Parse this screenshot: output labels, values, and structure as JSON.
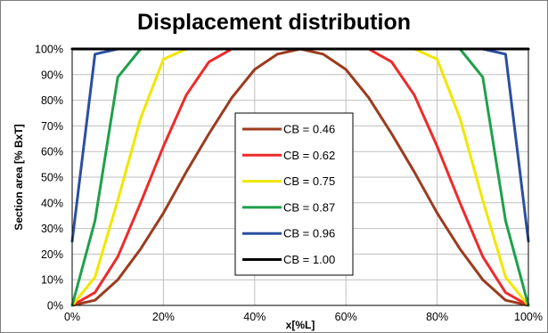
{
  "chart_data": {
    "type": "line",
    "title": "Displacement distribution",
    "xlabel": "x[%L]",
    "ylabel": "Section area [% BxT]",
    "xlim": [
      0,
      100
    ],
    "ylim": [
      0,
      100
    ],
    "x_ticks": [
      "0%",
      "20%",
      "40%",
      "60%",
      "80%",
      "100%"
    ],
    "y_ticks": [
      "0%",
      "10%",
      "20%",
      "30%",
      "40%",
      "50%",
      "60%",
      "70%",
      "80%",
      "90%",
      "100%"
    ],
    "grid": true,
    "legend_position": "center",
    "series": [
      {
        "name": "CB = 0.46",
        "color": "#9c3b1e",
        "x": [
          0,
          5,
          10,
          15,
          20,
          25,
          30,
          35,
          40,
          45,
          50,
          55,
          60,
          65,
          70,
          75,
          80,
          85,
          90,
          95,
          100
        ],
        "y": [
          0,
          2,
          10,
          22,
          36,
          52,
          67,
          81,
          92,
          98,
          100,
          98,
          92,
          81,
          67,
          52,
          36,
          22,
          10,
          2,
          0
        ]
      },
      {
        "name": "CB = 0.62",
        "color": "#ee2a2a",
        "x": [
          0,
          5,
          10,
          15,
          20,
          25,
          30,
          35,
          40,
          60,
          65,
          70,
          75,
          80,
          85,
          90,
          95,
          100
        ],
        "y": [
          0,
          5,
          19,
          40,
          62,
          82,
          95,
          100,
          100,
          100,
          100,
          95,
          82,
          62,
          40,
          19,
          5,
          0
        ]
      },
      {
        "name": "CB = 0.75",
        "color": "#f2e600",
        "x": [
          0,
          5,
          10,
          15,
          20,
          25,
          75,
          80,
          85,
          90,
          95,
          100
        ],
        "y": [
          0,
          11,
          41,
          73,
          96,
          100,
          100,
          96,
          73,
          41,
          11,
          0
        ]
      },
      {
        "name": "CB = 0.87",
        "color": "#1ea14a",
        "x": [
          0,
          5,
          10,
          15,
          85,
          90,
          95,
          100
        ],
        "y": [
          0,
          33,
          89,
          100,
          100,
          89,
          33,
          0
        ]
      },
      {
        "name": "CB = 0.96",
        "color": "#2b4fa0",
        "x": [
          0,
          5,
          10,
          90,
          95,
          100
        ],
        "y": [
          25,
          98,
          100,
          100,
          98,
          25
        ]
      },
      {
        "name": "CB = 1.00",
        "color": "#000000",
        "x": [
          0,
          100
        ],
        "y": [
          100,
          100
        ]
      }
    ]
  }
}
